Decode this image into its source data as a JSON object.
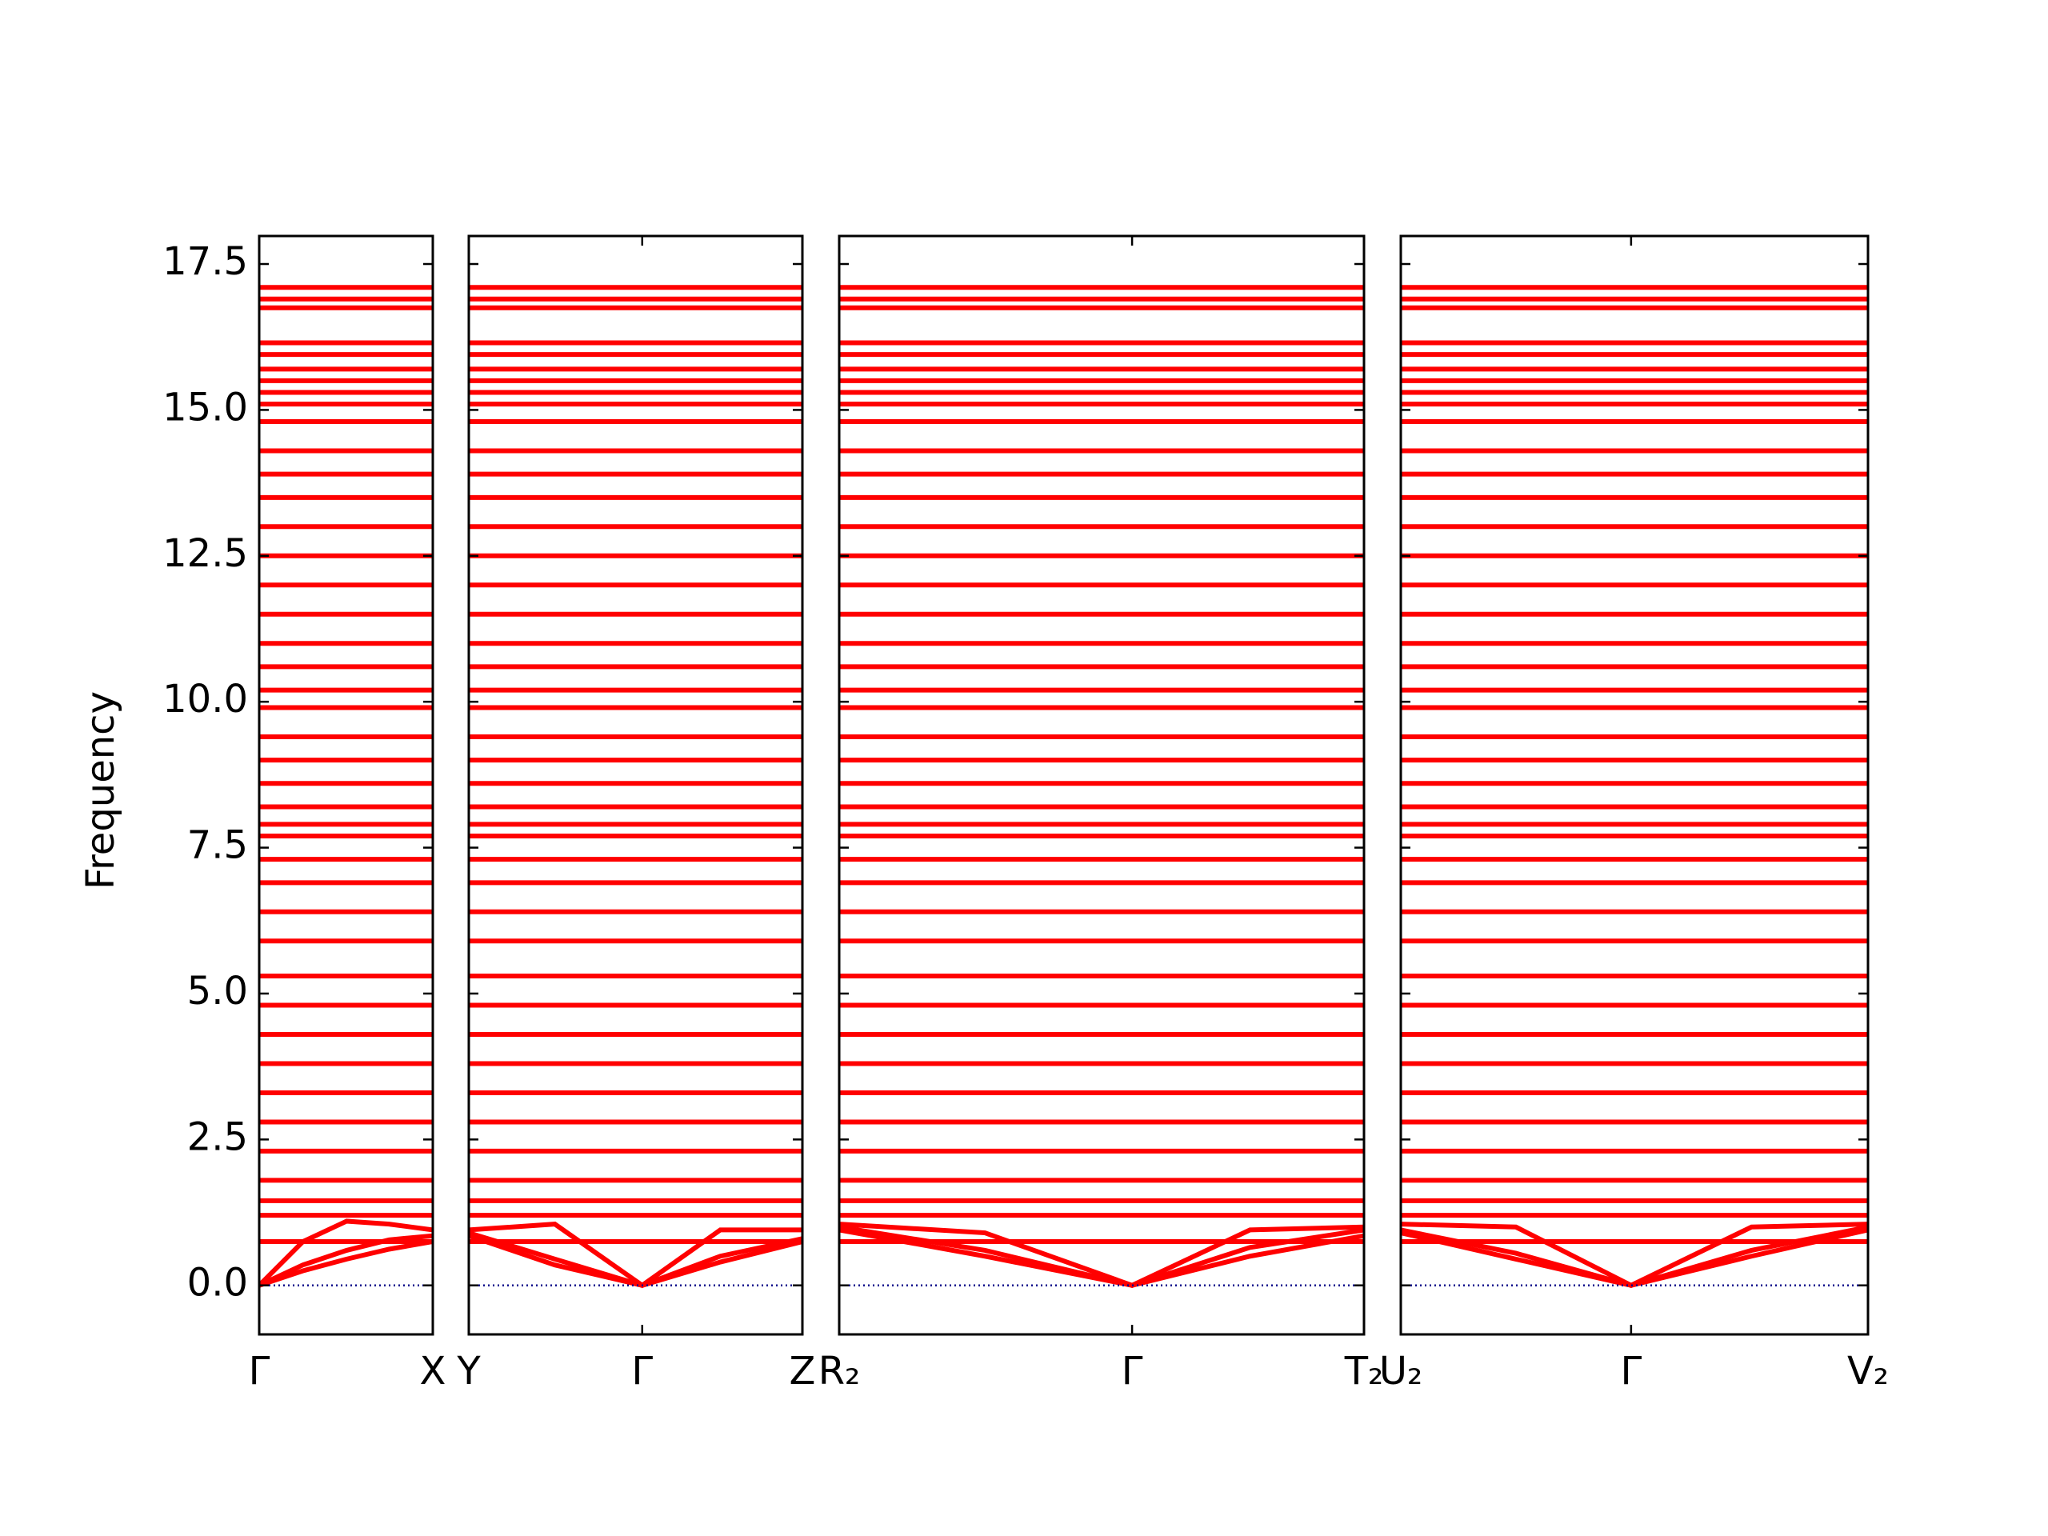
{
  "chart_data": {
    "type": "line",
    "ylabel": "Frequency",
    "ylim": [
      -0.84,
      17.98
    ],
    "yticks": [
      {
        "value": 0,
        "label": "0.0"
      },
      {
        "value": 2.5,
        "label": "2.5"
      },
      {
        "value": 5,
        "label": "5.0"
      },
      {
        "value": 7.5,
        "label": "7.5"
      },
      {
        "value": 10,
        "label": "10.0"
      },
      {
        "value": 12.5,
        "label": "12.5"
      },
      {
        "value": 15,
        "label": "15.0"
      },
      {
        "value": 17.5,
        "label": "17.5"
      }
    ],
    "color": "#ff0000",
    "zero_line": {
      "value": 0,
      "color": "#00008b",
      "style": "dotted"
    },
    "flat_bands": [
      0.75,
      1.2,
      1.45,
      1.8,
      2.3,
      2.8,
      3.3,
      3.8,
      4.3,
      4.8,
      5.3,
      5.9,
      6.4,
      6.9,
      7.3,
      7.7,
      7.9,
      8.2,
      8.6,
      9.0,
      9.4,
      9.9,
      10.2,
      10.6,
      11.0,
      11.5,
      12.0,
      12.5,
      13.0,
      13.5,
      13.9,
      14.3,
      14.8,
      15.1,
      15.3,
      15.5,
      15.7,
      15.95,
      16.15,
      16.75,
      16.9,
      17.1
    ],
    "panels": [
      {
        "xlim": [
          0,
          1.31
        ],
        "x": [
          0,
          0.33,
          0.66,
          0.98,
          1.31
        ],
        "xticks": [
          {
            "value": 0,
            "label": "Γ"
          },
          {
            "value": 1.31,
            "label": "X"
          }
        ],
        "series": [
          {
            "values": [
              0,
              0.35,
              0.6,
              0.78,
              0.85
            ]
          },
          {
            "values": [
              0,
              0.25,
              0.45,
              0.62,
              0.75
            ]
          },
          {
            "values": [
              0,
              0.75,
              1.1,
              1.05,
              0.95
            ]
          }
        ]
      },
      {
        "xlim": [
          0,
          2.52
        ],
        "x": [
          0,
          0.65,
          1.31,
          1.9,
          2.52
        ],
        "xticks": [
          {
            "value": 0,
            "label": "Y"
          },
          {
            "value": 1.31,
            "label": "Γ"
          },
          {
            "value": 2.52,
            "label": "Z"
          }
        ],
        "series": [
          {
            "values": [
              0.9,
              0.45,
              0,
              0.5,
              0.8
            ]
          },
          {
            "values": [
              0.85,
              0.35,
              0,
              0.4,
              0.75
            ]
          },
          {
            "values": [
              0.95,
              1.05,
              0,
              0.95,
              0.95
            ]
          }
        ]
      },
      {
        "xlim": [
          0,
          3.96
        ],
        "x": [
          0,
          1.1,
          2.21,
          3.1,
          3.96
        ],
        "xticks": [
          {
            "value": 0,
            "label": "R₂"
          },
          {
            "value": 2.21,
            "label": "Γ"
          },
          {
            "value": 3.96,
            "label": "T₂"
          }
        ],
        "series": [
          {
            "values": [
              1.0,
              0.6,
              0,
              0.65,
              0.95
            ]
          },
          {
            "values": [
              0.95,
              0.5,
              0,
              0.5,
              0.85
            ]
          },
          {
            "values": [
              1.05,
              0.9,
              0,
              0.95,
              1.0
            ]
          }
        ]
      },
      {
        "xlim": [
          0,
          3.53
        ],
        "x": [
          0,
          0.87,
          1.74,
          2.65,
          3.53
        ],
        "xticks": [
          {
            "value": 0,
            "label": "U₂"
          },
          {
            "value": 1.74,
            "label": "Γ"
          },
          {
            "value": 3.53,
            "label": "V₂"
          }
        ],
        "series": [
          {
            "values": [
              0.95,
              0.55,
              0,
              0.6,
              1.0
            ]
          },
          {
            "values": [
              0.9,
              0.45,
              0,
              0.5,
              0.95
            ]
          },
          {
            "values": [
              1.05,
              1.0,
              0,
              1.0,
              1.05
            ]
          }
        ]
      }
    ]
  }
}
